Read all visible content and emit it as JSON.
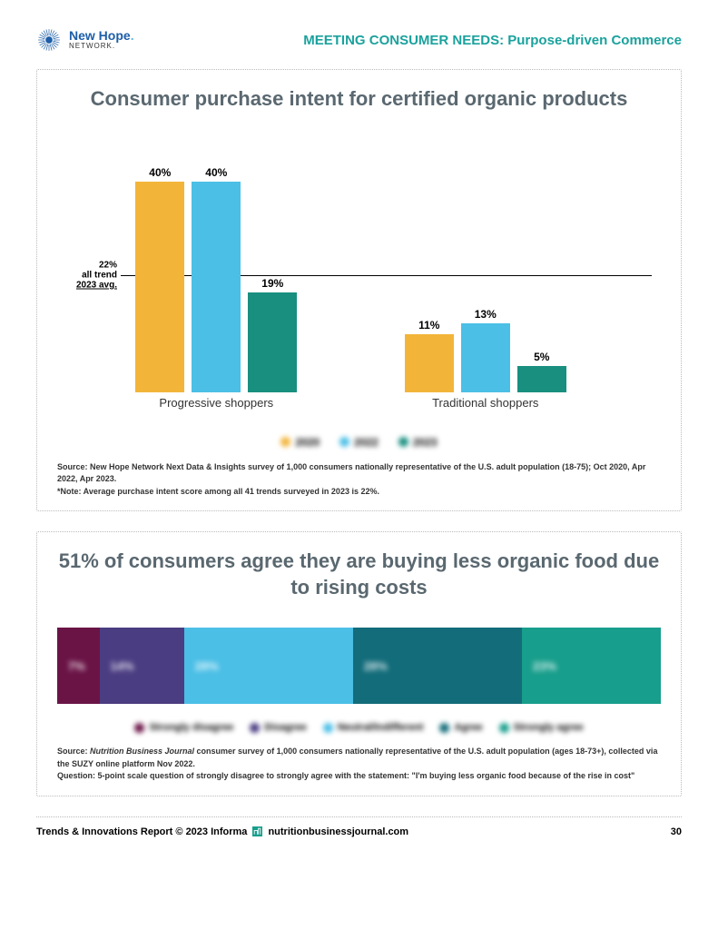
{
  "header": {
    "brand_color": "#1d5ea8",
    "brand": "New Hope",
    "brand_sub": "NETWORK.",
    "title_prefix": "MEETING CONSUMER NEEDS: ",
    "title_suffix": "Purpose-driven Commerce",
    "title_color": "#1aa29d"
  },
  "chart1": {
    "title": "Consumer purchase intent for certified organic products",
    "ymax": 48,
    "reference": {
      "value": 22,
      "label_lines": [
        "22%",
        "all trend",
        "2023 avg."
      ]
    },
    "groups": [
      {
        "label": "Progressive shoppers",
        "bars": [
          40,
          40,
          19
        ]
      },
      {
        "label": "Traditional shoppers",
        "bars": [
          11,
          13,
          5
        ]
      }
    ],
    "bar_colors": [
      "#f2b53a",
      "#4bbfe6",
      "#188f7f"
    ],
    "legend_labels": [
      "2020",
      "2022",
      "2023"
    ],
    "source": "Source: New Hope Network Next Data & Insights survey of 1,000 consumers nationally representative of the U.S. adult population (18-75); Oct 2020, Apr 2022, Apr 2023.",
    "note": "*Note: Average purchase intent score among all 41 trends surveyed in 2023 is 22%."
  },
  "chart2": {
    "title": "51% of consumers agree they are buying less organic food due to rising costs",
    "segments": [
      {
        "label": "7%",
        "value": 7,
        "color": "#6a1446"
      },
      {
        "label": "14%",
        "value": 14,
        "color": "#4b3d82"
      },
      {
        "label": "28%",
        "value": 28,
        "color": "#4bbfe6"
      },
      {
        "label": "28%",
        "value": 28,
        "color": "#136c7a"
      },
      {
        "label": "23%",
        "value": 23,
        "color": "#189e8c"
      }
    ],
    "legend": [
      "Strongly disagree",
      "Disagree",
      "Neutral/Indifferent",
      "Agree",
      "Strongly agree"
    ],
    "legend_colors": [
      "#6a1446",
      "#4b3d82",
      "#4bbfe6",
      "#136c7a",
      "#189e8c"
    ],
    "source_prefix": "Source: ",
    "source_italic": "Nutrition Business Journal",
    "source_rest": " consumer survey of 1,000 consumers nationally representative of the U.S. adult population (ages 18-73+), collected via the SUZY online platform Nov 2022.",
    "question": "Question: 5-point scale question of strongly disagree to strongly agree with the statement: \"I'm buying less organic food because of the rise in cost\""
  },
  "footer": {
    "left": "Trends & Innovations Report  © 2023 Informa",
    "site": "nutritionbusinessjournal.com",
    "page": "30",
    "icon_color": "#189e8c"
  }
}
